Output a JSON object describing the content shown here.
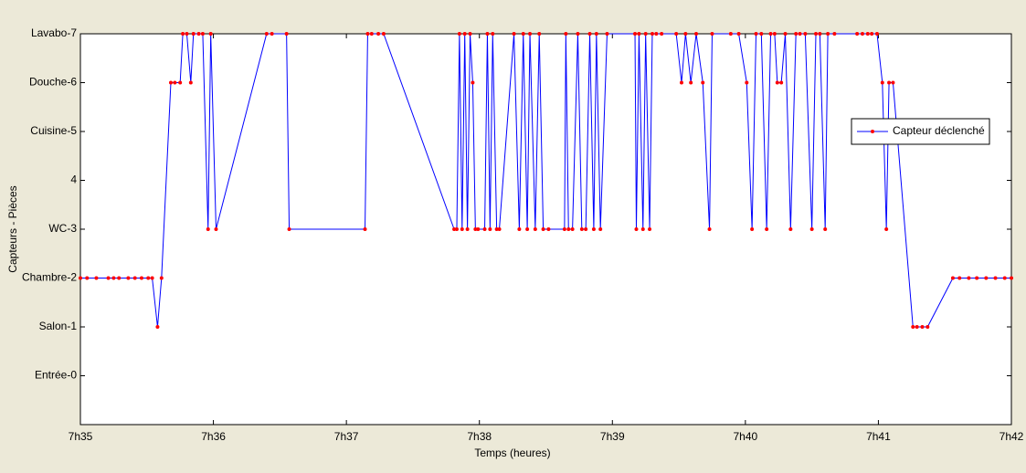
{
  "chart_data": {
    "type": "line",
    "xlabel": "Temps (heures)",
    "ylabel": "Capteurs - Pièces",
    "x": [
      0,
      0.05,
      0.12,
      0.21,
      0.25,
      0.29,
      0.36,
      0.41,
      0.46,
      0.51,
      0.54,
      0.58,
      0.61,
      0.68,
      0.71,
      0.75,
      0.77,
      0.8,
      0.83,
      0.85,
      0.89,
      0.92,
      0.96,
      0.98,
      1.02,
      1.4,
      1.44,
      1.55,
      1.57,
      2.14,
      2.16,
      2.19,
      2.24,
      2.28,
      2.81,
      2.83,
      2.85,
      2.87,
      2.89,
      2.91,
      2.93,
      2.95,
      2.97,
      2.99,
      3.04,
      3.06,
      3.08,
      3.1,
      3.13,
      3.15,
      3.26,
      3.3,
      3.33,
      3.36,
      3.38,
      3.42,
      3.45,
      3.48,
      3.52,
      3.64,
      3.65,
      3.67,
      3.7,
      3.74,
      3.77,
      3.8,
      3.83,
      3.86,
      3.88,
      3.91,
      3.96,
      4.17,
      4.18,
      4.2,
      4.23,
      4.25,
      4.28,
      4.3,
      4.33,
      4.37,
      4.48,
      4.52,
      4.55,
      4.59,
      4.63,
      4.68,
      4.73,
      4.75,
      4.89,
      4.95,
      5.01,
      5.05,
      5.08,
      5.12,
      5.16,
      5.19,
      5.22,
      5.24,
      5.27,
      5.3,
      5.34,
      5.38,
      5.41,
      5.45,
      5.5,
      5.53,
      5.56,
      5.6,
      5.62,
      5.67,
      5.84,
      5.88,
      5.92,
      5.95,
      5.99,
      6.03,
      6.06,
      6.08,
      6.11,
      6.26,
      6.29,
      6.33,
      6.37,
      6.56,
      6.61,
      6.68,
      6.74,
      6.81,
      6.88,
      6.95,
      7.0
    ],
    "series": [
      {
        "name": "Capteur déclenché",
        "color": "#0000ff",
        "marker_color": "#ff0000",
        "values": [
          2,
          2,
          2,
          2,
          2,
          2,
          2,
          2,
          2,
          2,
          2,
          1,
          2,
          6,
          6,
          6,
          7,
          7,
          6,
          7,
          7,
          7,
          3,
          7,
          3,
          7,
          7,
          7,
          3,
          3,
          7,
          7,
          7,
          7,
          3,
          3,
          7,
          3,
          7,
          3,
          7,
          6,
          3,
          3,
          3,
          7,
          3,
          7,
          3,
          3,
          7,
          3,
          7,
          3,
          7,
          3,
          7,
          3,
          3,
          3,
          7,
          3,
          3,
          7,
          3,
          3,
          7,
          3,
          7,
          3,
          7,
          7,
          3,
          7,
          3,
          7,
          3,
          7,
          7,
          7,
          7,
          6,
          7,
          6,
          7,
          6,
          3,
          7,
          7,
          7,
          6,
          3,
          7,
          7,
          3,
          7,
          7,
          6,
          6,
          7,
          3,
          7,
          7,
          7,
          3,
          7,
          7,
          3,
          7,
          7,
          7,
          7,
          7,
          7,
          7,
          6,
          3,
          6,
          6,
          1,
          1,
          1,
          1,
          2,
          2,
          2,
          2,
          2,
          2,
          2,
          2
        ]
      }
    ],
    "xlim": [
      0,
      7
    ],
    "xticks": [
      {
        "value": 0,
        "label": "7h35"
      },
      {
        "value": 1,
        "label": "7h36"
      },
      {
        "value": 2,
        "label": "7h37"
      },
      {
        "value": 3,
        "label": "7h38"
      },
      {
        "value": 4,
        "label": "7h39"
      },
      {
        "value": 5,
        "label": "7h40"
      },
      {
        "value": 6,
        "label": "7h41"
      },
      {
        "value": 7,
        "label": "7h42"
      }
    ],
    "ylim": [
      -1,
      7
    ],
    "yticks": [
      {
        "value": 0,
        "label": "Entrée-0"
      },
      {
        "value": 1,
        "label": "Salon-1"
      },
      {
        "value": 2,
        "label": "Chambre-2"
      },
      {
        "value": 3,
        "label": "WC-3"
      },
      4,
      {
        "value": 5,
        "label": "Cuisine-5"
      },
      {
        "value": 6,
        "label": "Douche-6"
      },
      {
        "value": 7,
        "label": "Lavabo-7"
      }
    ],
    "grid": false,
    "legend": "northeast"
  }
}
